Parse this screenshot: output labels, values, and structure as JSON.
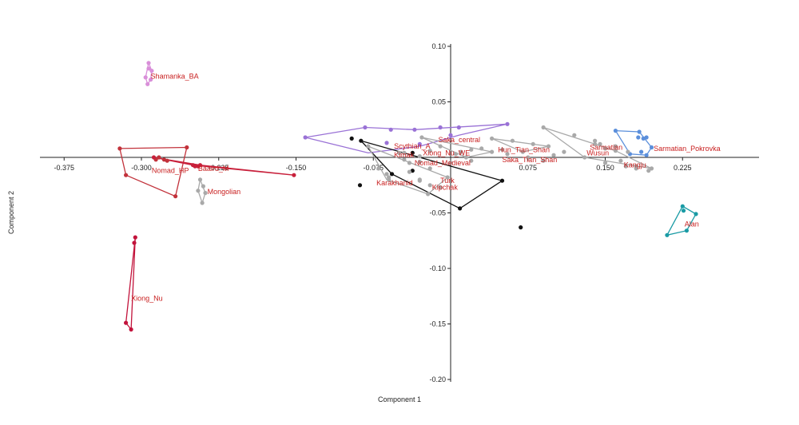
{
  "chart_data": {
    "type": "scatter",
    "xlabel": "Component 1",
    "ylabel": "Component 2",
    "xlim": [
      -0.43,
      0.26
    ],
    "ylim": [
      -0.205,
      0.105
    ],
    "x_ticks": [
      "-0.375",
      "-0.300",
      "-0.225",
      "-0.150",
      "-0.075",
      "0.075",
      "0.150",
      "0.225"
    ],
    "y_ticks": [
      "0.10",
      "0.05",
      "-0.05",
      "-0.10",
      "-0.15",
      "-0.20"
    ],
    "grid": false,
    "legend": "none",
    "series": [
      {
        "label": "Shamanka_BA",
        "color": "#d98fd9",
        "points": [
          [
            -0.293,
            0.085
          ],
          [
            -0.29,
            0.078
          ],
          [
            -0.291,
            0.07
          ],
          [
            -0.294,
            0.066
          ],
          [
            -0.296,
            0.072
          ],
          [
            -0.293,
            0.08
          ]
        ],
        "hull": [
          [
            -0.293,
            0.085
          ],
          [
            -0.29,
            0.078
          ],
          [
            -0.291,
            0.07
          ],
          [
            -0.294,
            0.066
          ],
          [
            -0.296,
            0.072
          ]
        ],
        "label_at": [
          -0.291,
          0.073
        ]
      },
      {
        "label": "Nomad_HP",
        "color": "#c2323b",
        "points": [
          [
            -0.321,
            0.008
          ],
          [
            -0.256,
            0.009
          ],
          [
            -0.286,
            -0.002
          ],
          [
            -0.315,
            -0.016
          ],
          [
            -0.267,
            -0.035
          ],
          [
            -0.283,
            0.0
          ],
          [
            -0.278,
            -0.002
          ],
          [
            -0.275,
            -0.003
          ]
        ],
        "hull": [
          [
            -0.321,
            0.008
          ],
          [
            -0.256,
            0.009
          ],
          [
            -0.267,
            -0.035
          ],
          [
            -0.315,
            -0.016
          ]
        ],
        "label_at": [
          -0.29,
          -0.012
        ]
      },
      {
        "label": "Baaird_M",
        "color": "#c8203b",
        "points": [
          [
            -0.288,
            0.0
          ],
          [
            -0.25,
            -0.007
          ],
          [
            -0.245,
            -0.008
          ],
          [
            -0.243,
            -0.007
          ],
          [
            -0.152,
            -0.016
          ],
          [
            -0.248,
            -0.008
          ]
        ],
        "hull": [
          [
            -0.288,
            0.0
          ],
          [
            -0.243,
            -0.007
          ],
          [
            -0.152,
            -0.016
          ],
          [
            -0.25,
            -0.007
          ]
        ],
        "label_at": [
          -0.245,
          -0.01
        ]
      },
      {
        "label": "Mongolian",
        "color": "#a9a9a9",
        "points": [
          [
            -0.243,
            -0.02
          ],
          [
            -0.24,
            -0.026
          ],
          [
            -0.245,
            -0.03
          ],
          [
            -0.241,
            -0.041
          ],
          [
            -0.238,
            -0.032
          ]
        ],
        "hull": [
          [
            -0.243,
            -0.02
          ],
          [
            -0.238,
            -0.032
          ],
          [
            -0.241,
            -0.041
          ],
          [
            -0.245,
            -0.03
          ]
        ],
        "label_at": [
          -0.236,
          -0.031
        ]
      },
      {
        "label": "Xiong_Nu",
        "color": "#c2133b",
        "points": [
          [
            -0.306,
            -0.072
          ],
          [
            -0.315,
            -0.149
          ],
          [
            -0.31,
            -0.155
          ],
          [
            -0.307,
            -0.077
          ]
        ],
        "hull": [
          [
            -0.306,
            -0.072
          ],
          [
            -0.315,
            -0.149
          ],
          [
            -0.31,
            -0.155
          ]
        ],
        "label_at": [
          -0.31,
          -0.127
        ]
      },
      {
        "label": "Saka_central",
        "color": "#9a72d6",
        "points": [
          [
            -0.141,
            0.018
          ],
          [
            -0.083,
            0.027
          ],
          [
            -0.035,
            0.025
          ],
          [
            0.055,
            0.03
          ],
          [
            0.008,
            0.027
          ],
          [
            0.0,
            0.02
          ],
          [
            -0.058,
            0.025
          ],
          [
            -0.01,
            0.027
          ],
          [
            -0.03,
            0.012
          ],
          [
            -0.062,
            0.013
          ]
        ],
        "hull": [
          [
            -0.141,
            0.018
          ],
          [
            -0.083,
            0.027
          ],
          [
            -0.035,
            0.025
          ],
          [
            0.055,
            0.03
          ],
          [
            0.008,
            0.02
          ],
          [
            -0.03,
            0.01
          ],
          [
            -0.08,
            0.004
          ]
        ],
        "label_at": [
          -0.012,
          0.016
        ]
      },
      {
        "label": "Sarmatian_Pokrovka",
        "color": "#5b8fdb",
        "points": [
          [
            0.16,
            0.024
          ],
          [
            0.183,
            0.023
          ],
          [
            0.19,
            0.018
          ],
          [
            0.195,
            0.009
          ],
          [
            0.185,
            0.005
          ],
          [
            0.174,
            0.003
          ],
          [
            0.19,
            0.002
          ],
          [
            0.182,
            0.018
          ],
          [
            0.187,
            0.017
          ]
        ],
        "hull": [
          [
            0.16,
            0.024
          ],
          [
            0.183,
            0.023
          ],
          [
            0.195,
            0.009
          ],
          [
            0.19,
            0.002
          ],
          [
            0.174,
            0.003
          ]
        ],
        "label_at": [
          0.197,
          0.008
        ]
      },
      {
        "label": "Alan",
        "color": "#1a9ba5",
        "points": [
          [
            0.21,
            -0.07
          ],
          [
            0.225,
            -0.044
          ],
          [
            0.238,
            -0.051
          ],
          [
            0.229,
            -0.066
          ],
          [
            0.226,
            -0.048
          ]
        ],
        "hull": [
          [
            0.21,
            -0.07
          ],
          [
            0.225,
            -0.044
          ],
          [
            0.238,
            -0.051
          ],
          [
            0.229,
            -0.066
          ]
        ],
        "label_at": [
          0.227,
          -0.06
        ]
      },
      {
        "label": "Turk",
        "color": "#111111",
        "points": [
          [
            -0.096,
            0.017
          ],
          [
            -0.087,
            0.015
          ],
          [
            -0.057,
            -0.015
          ],
          [
            -0.037,
            -0.012
          ],
          [
            0.009,
            -0.046
          ],
          [
            0.05,
            -0.021
          ],
          [
            0.068,
            -0.063
          ],
          [
            -0.037,
            0.004
          ],
          [
            -0.088,
            -0.025
          ]
        ],
        "hull": [
          [
            -0.087,
            0.015
          ],
          [
            0.05,
            -0.021
          ],
          [
            0.009,
            -0.046
          ],
          [
            -0.057,
            -0.015
          ]
        ],
        "label_at": [
          -0.01,
          -0.021
        ]
      },
      {
        "label": "Scythian_A",
        "color": "#a9a9a9",
        "points": [
          [
            -0.08,
            0.01
          ],
          [
            -0.05,
            0.004
          ],
          [
            -0.062,
            -0.015
          ],
          [
            -0.06,
            -0.02
          ],
          [
            -0.022,
            -0.033
          ],
          [
            -0.03,
            -0.021
          ],
          [
            -0.003,
            -0.018
          ],
          [
            -0.03,
            -0.004
          ]
        ],
        "hull": [
          [
            -0.08,
            0.01
          ],
          [
            -0.003,
            -0.018
          ],
          [
            -0.022,
            -0.033
          ],
          [
            -0.062,
            -0.02
          ]
        ],
        "label_at": [
          -0.055,
          0.01
        ]
      },
      {
        "label": "Kimak",
        "color": "#a9a9a9",
        "points": [
          [
            -0.045,
            0.004
          ],
          [
            -0.03,
            0.001
          ],
          [
            -0.04,
            -0.005
          ]
        ],
        "hull": [],
        "label_at": [
          -0.055,
          0.002
        ]
      },
      {
        "label": "Xiong_Nu_WE",
        "color": "#a9a9a9",
        "points": [
          [
            -0.028,
            0.018
          ],
          [
            -0.01,
            0.01
          ],
          [
            0.01,
            0.005
          ],
          [
            0.02,
            0.007
          ],
          [
            0.03,
            0.008
          ],
          [
            0.04,
            0.005
          ],
          [
            0.005,
            0.003
          ],
          [
            -0.02,
            0.006
          ],
          [
            0.015,
            0.0
          ]
        ],
        "hull": [
          [
            -0.028,
            0.018
          ],
          [
            0.04,
            0.005
          ],
          [
            0.015,
            0.0
          ]
        ],
        "label_at": [
          -0.027,
          0.004
        ]
      },
      {
        "label": "Nomad_Medieval",
        "color": "#a9a9a9",
        "points": [
          [
            -0.045,
            -0.002
          ],
          [
            0.0,
            -0.005
          ],
          [
            0.02,
            -0.003
          ],
          [
            -0.02,
            -0.01
          ]
        ],
        "hull": [],
        "label_at": [
          -0.035,
          -0.005
        ]
      },
      {
        "label": "Karakhanid",
        "color": "#a9a9a9",
        "points": [
          [
            -0.07,
            -0.01
          ],
          [
            -0.06,
            -0.018
          ],
          [
            -0.04,
            -0.013
          ]
        ],
        "hull": [],
        "label_at": [
          -0.072,
          -0.023
        ]
      },
      {
        "label": "Kipchak",
        "color": "#a9a9a9",
        "points": [
          [
            -0.03,
            -0.02
          ],
          [
            -0.02,
            -0.025
          ],
          [
            -0.01,
            -0.027
          ]
        ],
        "hull": [],
        "label_at": [
          -0.018,
          -0.027
        ]
      },
      {
        "label": "Hun_Tian_Shan",
        "color": "#a9a9a9",
        "points": [
          [
            0.04,
            0.017
          ],
          [
            0.06,
            0.015
          ],
          [
            0.08,
            0.012
          ],
          [
            0.095,
            0.01
          ],
          [
            0.05,
            0.007
          ],
          [
            0.07,
            0.005
          ]
        ],
        "hull": [
          [
            0.04,
            0.017
          ],
          [
            0.095,
            0.01
          ],
          [
            0.07,
            0.005
          ]
        ],
        "label_at": [
          0.046,
          0.007
        ]
      },
      {
        "label": "Saka_Tian_Shan",
        "color": "#a9a9a9",
        "points": [
          [
            0.055,
            0.003
          ],
          [
            0.075,
            0.0
          ],
          [
            0.09,
            -0.003
          ],
          [
            0.1,
            0.002
          ],
          [
            0.11,
            0.005
          ]
        ],
        "hull": [],
        "label_at": [
          0.05,
          -0.002
        ]
      },
      {
        "label": "Wusun",
        "color": "#a9a9a9",
        "points": [
          [
            0.09,
            0.027
          ],
          [
            0.12,
            0.02
          ],
          [
            0.145,
            0.012
          ],
          [
            0.16,
            0.006
          ],
          [
            0.18,
            -0.008
          ],
          [
            0.195,
            -0.01
          ],
          [
            0.13,
            0.0
          ],
          [
            0.15,
            -0.005
          ],
          [
            0.14,
            0.015
          ]
        ],
        "hull": [
          [
            0.09,
            0.027
          ],
          [
            0.16,
            0.006
          ],
          [
            0.195,
            -0.01
          ],
          [
            0.13,
            0.0
          ]
        ],
        "label_at": [
          0.132,
          0.004
        ]
      },
      {
        "label": "Sarmatian",
        "color": "#a9a9a9",
        "points": [
          [
            0.14,
            0.012
          ],
          [
            0.16,
            0.01
          ],
          [
            0.172,
            0.005
          ],
          [
            0.15,
            0.008
          ]
        ],
        "hull": [],
        "label_at": [
          0.135,
          0.009
        ]
      },
      {
        "label": "Kangju",
        "color": "#a9a9a9",
        "points": [
          [
            0.165,
            -0.003
          ],
          [
            0.18,
            -0.01
          ],
          [
            0.192,
            -0.012
          ],
          [
            0.17,
            -0.008
          ]
        ],
        "hull": [],
        "label_at": [
          0.168,
          -0.007
        ]
      }
    ]
  }
}
